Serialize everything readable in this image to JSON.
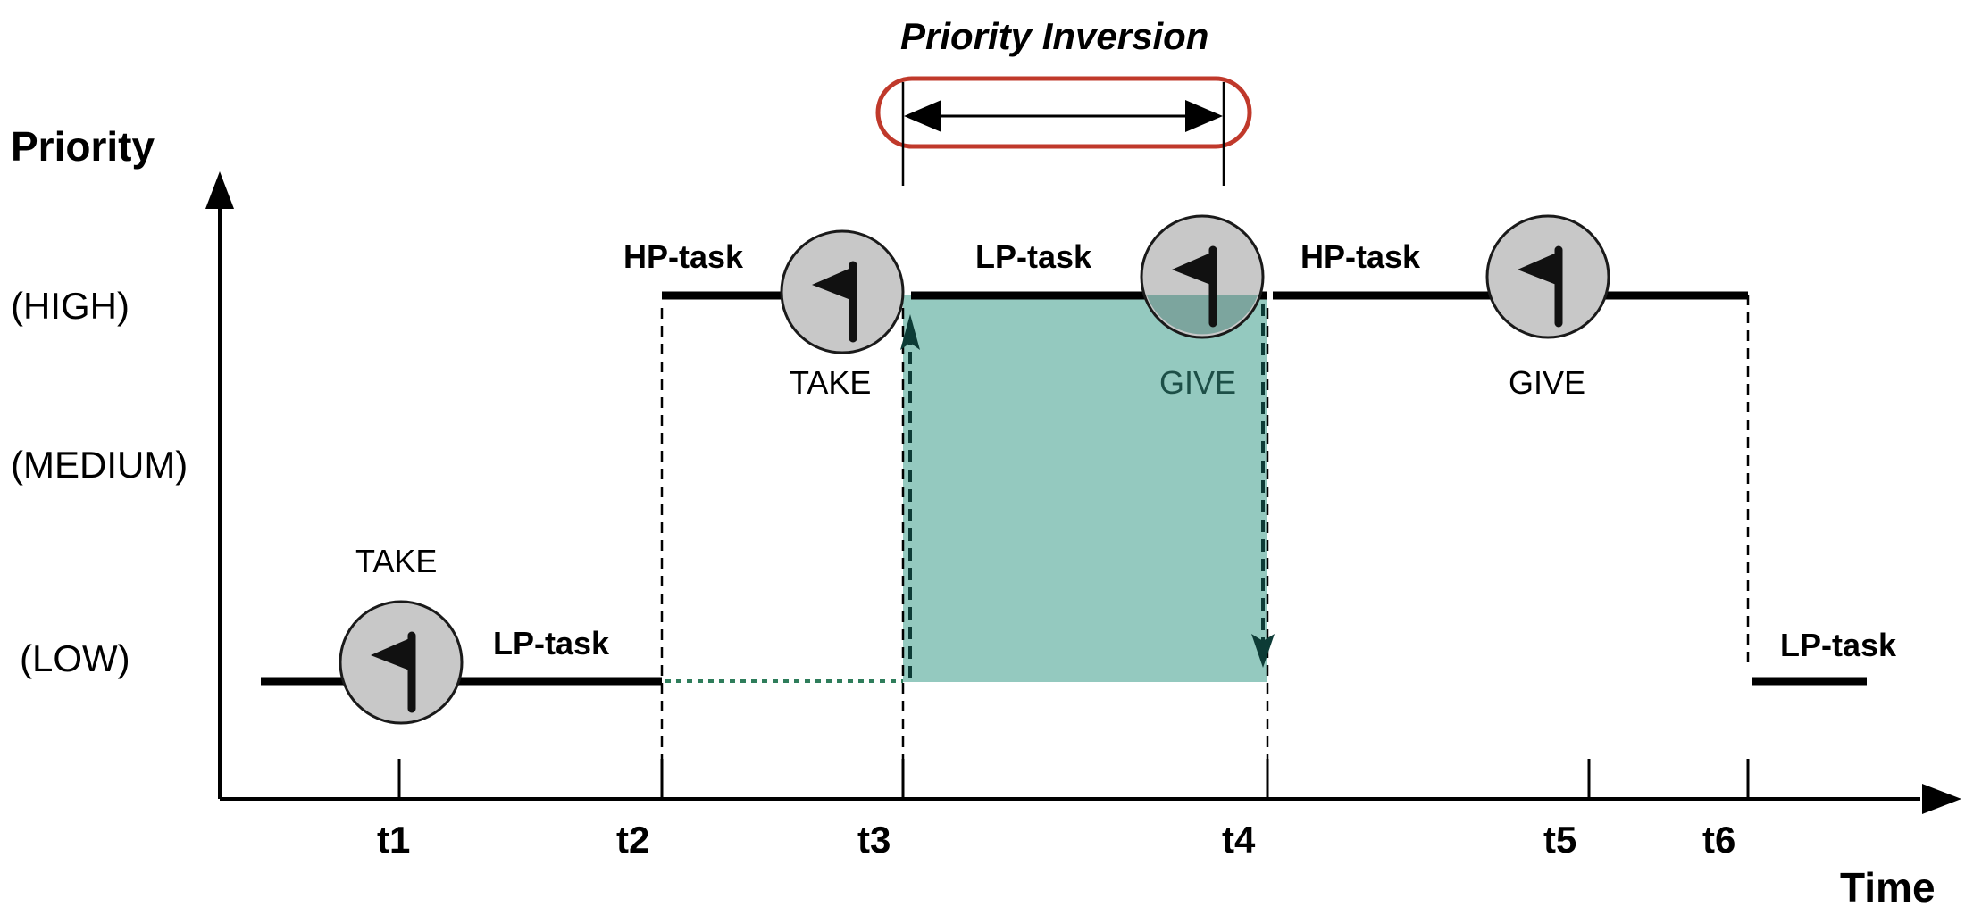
{
  "title": "Priority Inversion",
  "axes": {
    "y_title": "Priority",
    "x_title": "Time",
    "y_levels": [
      "(HIGH)",
      "(MEDIUM)",
      "(LOW)"
    ],
    "x_ticks": [
      "t1",
      "t2",
      "t3",
      "t4",
      "t5",
      "t6"
    ]
  },
  "tasks": {
    "lp1": "LP-task",
    "hp1": "HP-task",
    "lp2": "LP-task",
    "hp2": "HP-task",
    "lp3": "LP-task"
  },
  "events": {
    "take1": "TAKE",
    "take2": "TAKE",
    "give1": "GIVE",
    "give2": "GIVE"
  },
  "colors": {
    "inversion_fill": "#8ec6bc",
    "inversion_outline": "#c0392b",
    "dotted_wait": "#2e7d5b",
    "semaphore_fill": "#c8c8c8",
    "line": "#000000"
  },
  "icons": [
    "flag-icon"
  ]
}
